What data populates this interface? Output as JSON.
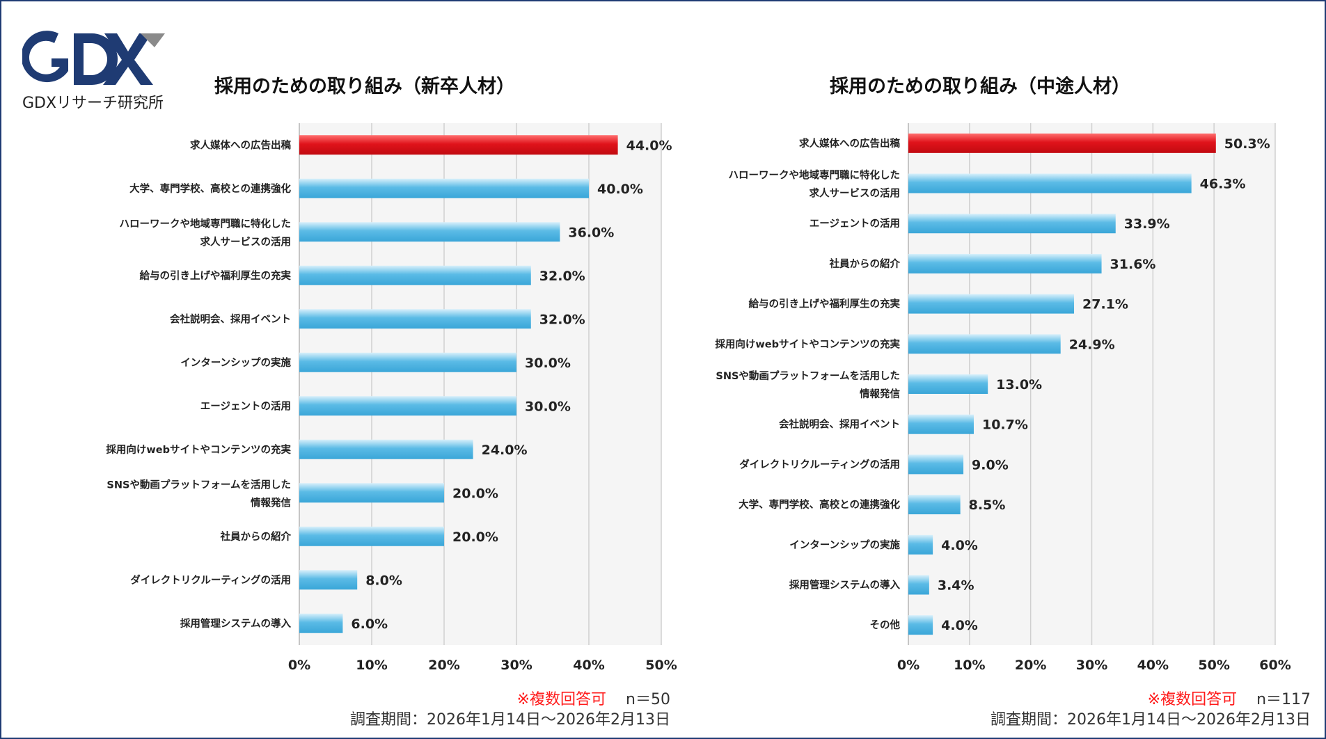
{
  "logo": {
    "mark": "GDX",
    "subtitle": "GDXリサーチ研究所",
    "colors": {
      "navy": "#1f3b73",
      "gray": "#8a8a8a"
    }
  },
  "colors": {
    "highlight": "#e0131b",
    "bar": "#5bbbe6",
    "plot_bg": "#f5f5f5",
    "grid": "#d0d0d0"
  },
  "chart_data": [
    {
      "type": "bar",
      "orientation": "horizontal",
      "title": "採用のための取り組み（新卒人材）",
      "categories": [
        "求人媒体への広告出稿",
        "大学、専門学校、高校との連携強化",
        "ハローワークや地域専門職に特化した\n求人サービスの活用",
        "給与の引き上げや福利厚生の充実",
        "会社説明会、採用イベント",
        "インターンシップの実施",
        "エージェントの活用",
        "採用向けwebサイトやコンテンツの充実",
        "SNSや動画プラットフォームを活用した\n情報発信",
        "社員からの紹介",
        "ダイレクトリクルーティングの活用",
        "採用管理システムの導入"
      ],
      "values": [
        44.0,
        40.0,
        36.0,
        32.0,
        32.0,
        30.0,
        30.0,
        24.0,
        20.0,
        20.0,
        8.0,
        6.0
      ],
      "value_labels": [
        "44.0%",
        "40.0%",
        "36.0%",
        "32.0%",
        "32.0%",
        "30.0%",
        "30.0%",
        "24.0%",
        "20.0%",
        "20.0%",
        "8.0%",
        "6.0%"
      ],
      "highlight_index": 0,
      "xlim": [
        0,
        50
      ],
      "xticks": [
        0,
        10,
        20,
        30,
        40,
        50
      ],
      "xtick_labels": [
        "0%",
        "10%",
        "20%",
        "30%",
        "40%",
        "50%"
      ],
      "grid": true,
      "note": "※複数回答可",
      "n_label": "n＝50",
      "period": "調査期間：2026年1月14日〜2026年2月13日"
    },
    {
      "type": "bar",
      "orientation": "horizontal",
      "title": "採用のための取り組み（中途人材）",
      "categories": [
        "求人媒体への広告出稿",
        "ハローワークや地域専門職に特化した\n求人サービスの活用",
        "エージェントの活用",
        "社員からの紹介",
        "給与の引き上げや福利厚生の充実",
        "採用向けwebサイトやコンテンツの充実",
        "SNSや動画プラットフォームを活用した\n情報発信",
        "会社説明会、採用イベント",
        "ダイレクトリクルーティングの活用",
        "大学、専門学校、高校との連携強化",
        "インターンシップの実施",
        "採用管理システムの導入",
        "その他"
      ],
      "values": [
        50.3,
        46.3,
        33.9,
        31.6,
        27.1,
        24.9,
        13.0,
        10.7,
        9.0,
        8.5,
        4.0,
        3.4,
        4.0
      ],
      "value_labels": [
        "50.3%",
        "46.3%",
        "33.9%",
        "31.6%",
        "27.1%",
        "24.9%",
        "13.0%",
        "10.7%",
        "9.0%",
        "8.5%",
        "4.0%",
        "3.4%",
        "4.0%"
      ],
      "highlight_index": 0,
      "xlim": [
        0,
        60
      ],
      "xticks": [
        0,
        10,
        20,
        30,
        40,
        50,
        60
      ],
      "xtick_labels": [
        "0%",
        "10%",
        "20%",
        "30%",
        "40%",
        "50%",
        "60%"
      ],
      "grid": true,
      "note": "※複数回答可",
      "n_label": "n＝117",
      "period": "調査期間：2026年1月14日〜2026年2月13日"
    }
  ]
}
